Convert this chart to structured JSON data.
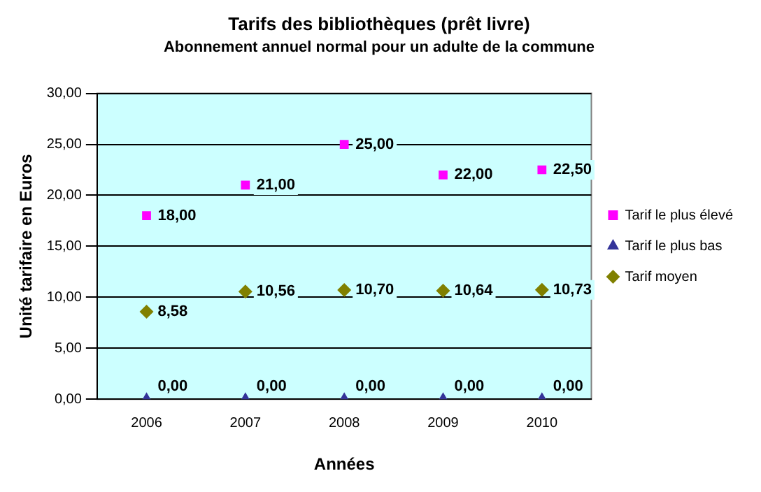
{
  "chart_data": {
    "type": "scatter",
    "title": "Tarifs des bibliothèques (prêt livre)",
    "subtitle": "Abonnement annuel normal pour un adulte de la commune",
    "xlabel": "Années",
    "ylabel": "Unité tarifaire en Euros",
    "categories": [
      "2006",
      "2007",
      "2008",
      "2009",
      "2010"
    ],
    "series": [
      {
        "name": "Tarif le plus élevé",
        "color": "#ff00ff",
        "marker": "square",
        "values": [
          18,
          21,
          25,
          22,
          22.5
        ],
        "value_labels": [
          "18,00",
          "21,00",
          "25,00",
          "22,00",
          "22,50"
        ]
      },
      {
        "name": "Tarif le plus bas",
        "color": "#333399",
        "marker": "triangle",
        "values": [
          0,
          0,
          0,
          0,
          0
        ],
        "value_labels": [
          "0,00",
          "0,00",
          "0,00",
          "0,00",
          "0,00"
        ]
      },
      {
        "name": "Tarif moyen",
        "color": "#808000",
        "marker": "diamond",
        "values": [
          8.58,
          10.56,
          10.7,
          10.64,
          10.73
        ],
        "value_labels": [
          "8,58",
          "10,56",
          "10,70",
          "10,64",
          "10,73"
        ]
      }
    ],
    "ylim": [
      0,
      30
    ],
    "yticks": [
      {
        "value": 0,
        "label": "0,00"
      },
      {
        "value": 5,
        "label": "5,00"
      },
      {
        "value": 10,
        "label": "10,00"
      },
      {
        "value": 15,
        "label": "15,00"
      },
      {
        "value": 20,
        "label": "20,00"
      },
      {
        "value": 25,
        "label": "25,00"
      },
      {
        "value": 30,
        "label": "30,00"
      }
    ],
    "grid": "y",
    "legend": "right"
  }
}
